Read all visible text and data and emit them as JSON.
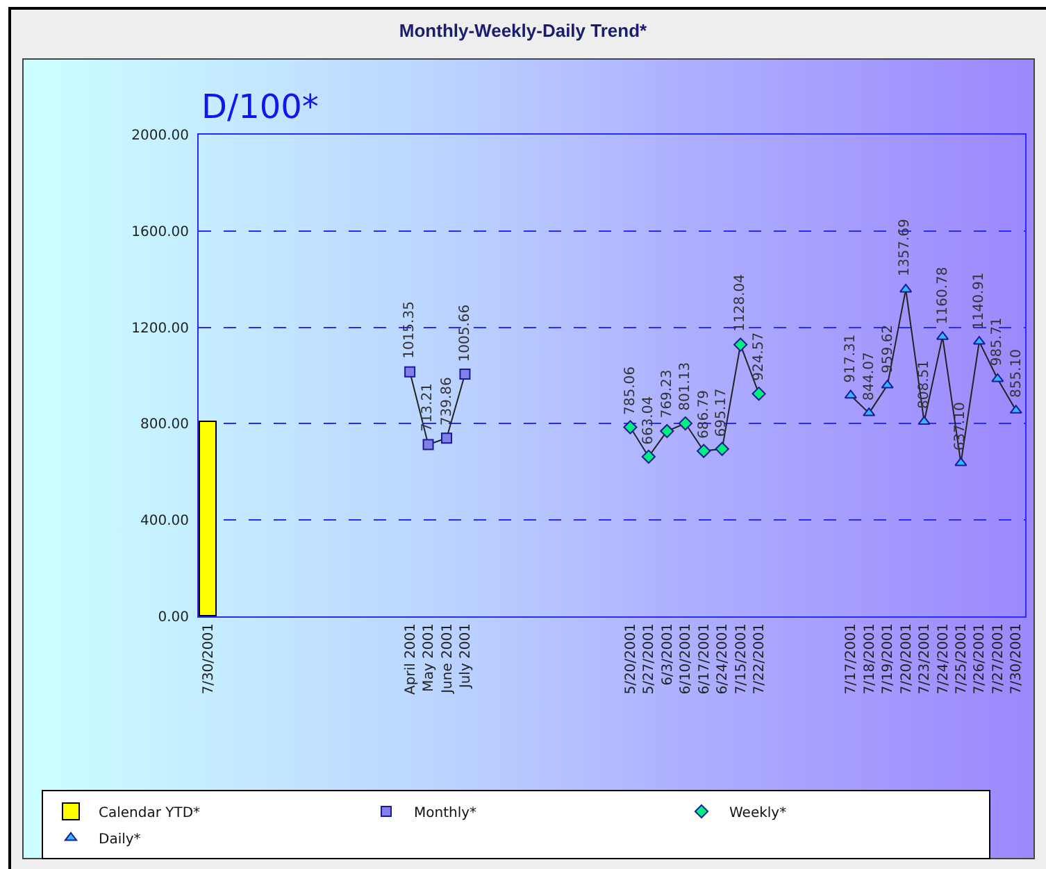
{
  "chart_data": {
    "type": "line",
    "title": "Monthly-Weekly-Daily Trend*",
    "ylabel": "D/100*",
    "categories": [
      "7/30/2001",
      null,
      null,
      null,
      null,
      null,
      null,
      null,
      null,
      null,
      null,
      "April 2001",
      "May 2001",
      "June 2001",
      "July 2001",
      null,
      null,
      null,
      null,
      null,
      null,
      null,
      null,
      "5/20/2001",
      "5/27/2001",
      "6/3/2001",
      "6/10/2001",
      "6/17/2001",
      "6/24/2001",
      "7/15/2001",
      "7/22/2001",
      null,
      null,
      null,
      null,
      "7/17/2001",
      "7/18/2001",
      "7/19/2001",
      "7/20/2001",
      "7/23/2001",
      "7/24/2001",
      "7/25/2001",
      "7/26/2001",
      "7/27/2001",
      "7/30/2001"
    ],
    "series": [
      {
        "name": "Calendar YTD*",
        "type": "bar",
        "color": "#ffff00",
        "values": [
          805,
          null,
          null,
          null,
          null,
          null,
          null,
          null,
          null,
          null,
          null,
          null,
          null,
          null,
          null,
          null,
          null,
          null,
          null,
          null,
          null,
          null,
          null,
          null,
          null,
          null,
          null,
          null,
          null,
          null,
          null,
          null,
          null,
          null,
          null,
          null,
          null,
          null,
          null,
          null,
          null,
          null,
          null,
          null,
          null
        ]
      },
      {
        "name": "Monthly*",
        "marker": "square",
        "color": "#8080e8",
        "values": [
          null,
          null,
          null,
          null,
          null,
          null,
          null,
          null,
          null,
          null,
          null,
          1015.35,
          713.21,
          739.86,
          1005.66,
          null,
          null,
          null,
          null,
          null,
          null,
          null,
          null,
          null,
          null,
          null,
          null,
          null,
          null,
          null,
          null,
          null,
          null,
          null,
          null,
          null,
          null,
          null,
          null,
          null,
          null,
          null,
          null,
          null,
          null
        ],
        "value_labels": [
          null,
          null,
          null,
          null,
          null,
          null,
          null,
          null,
          null,
          null,
          null,
          "1015.35",
          "713.21",
          "739.86",
          "1005.66",
          null,
          null,
          null,
          null,
          null,
          null,
          null,
          null,
          null,
          null,
          null,
          null,
          null,
          null,
          null,
          null,
          null,
          null,
          null,
          null,
          null,
          null,
          null,
          null,
          null,
          null,
          null,
          null,
          null,
          null
        ]
      },
      {
        "name": "Weekly*",
        "marker": "diamond",
        "color": "#00f080",
        "values": [
          null,
          null,
          null,
          null,
          null,
          null,
          null,
          null,
          null,
          null,
          null,
          null,
          null,
          null,
          null,
          null,
          null,
          null,
          null,
          null,
          null,
          null,
          null,
          785.06,
          663.04,
          769.23,
          801.13,
          686.79,
          695.17,
          1128.04,
          924.57,
          null,
          null,
          null,
          null,
          null,
          null,
          null,
          null,
          null,
          null,
          null,
          null,
          null,
          null
        ],
        "value_labels": [
          null,
          null,
          null,
          null,
          null,
          null,
          null,
          null,
          null,
          null,
          null,
          null,
          null,
          null,
          null,
          null,
          null,
          null,
          null,
          null,
          null,
          null,
          null,
          "785.06",
          "663.04",
          "769.23",
          "801.13",
          "686.79",
          "695.17",
          "1128.04",
          "924.57",
          null,
          null,
          null,
          null,
          null,
          null,
          null,
          null,
          null,
          null,
          null,
          null,
          null,
          null
        ]
      },
      {
        "name": "Daily*",
        "marker": "triangle",
        "color": "#30b8ff",
        "values": [
          null,
          null,
          null,
          null,
          null,
          null,
          null,
          null,
          null,
          null,
          null,
          null,
          null,
          null,
          null,
          null,
          null,
          null,
          null,
          null,
          null,
          null,
          null,
          null,
          null,
          null,
          null,
          null,
          null,
          null,
          null,
          null,
          null,
          null,
          null,
          917.31,
          844.07,
          959.62,
          1357.69,
          808.51,
          1160.78,
          637.1,
          1140.91,
          985.71,
          855.1
        ],
        "value_labels": [
          null,
          null,
          null,
          null,
          null,
          null,
          null,
          null,
          null,
          null,
          null,
          null,
          null,
          null,
          null,
          null,
          null,
          null,
          null,
          null,
          null,
          null,
          null,
          null,
          null,
          null,
          null,
          null,
          null,
          null,
          null,
          null,
          null,
          null,
          null,
          "917.31",
          "844.07",
          "959.62",
          "1357.69",
          "808.51",
          "1160.78",
          "637.10",
          "1140.91",
          "985.71",
          "855.10"
        ]
      }
    ],
    "ylim": [
      0,
      2000
    ],
    "yticks": [
      {
        "value": 0,
        "label": "0.00"
      },
      {
        "value": 400,
        "label": "400.00"
      },
      {
        "value": 800,
        "label": "800.00"
      },
      {
        "value": 1200,
        "label": "1200.00"
      },
      {
        "value": 1600,
        "label": "1600.00"
      },
      {
        "value": 2000,
        "label": "2000.00"
      }
    ],
    "grid": "y",
    "legend": "bottom"
  }
}
